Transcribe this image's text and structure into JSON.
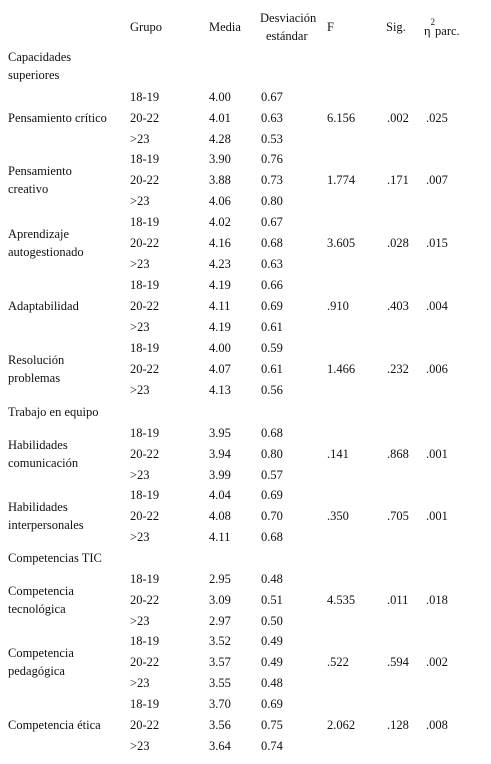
{
  "headers": {
    "grupo": "Grupo",
    "media": "Media",
    "desv_line1": "Desviación",
    "desv_line2": "estándar",
    "f": "F",
    "sig": "Sig.",
    "eta": "η",
    "eta_sup": "2",
    "eta_suffix": "parc."
  },
  "sections": [
    {
      "title_lines": [
        "Capacidades",
        "superiores"
      ],
      "items": [
        {
          "label_lines": [
            "Pensamiento crítico"
          ],
          "rows": [
            [
              "18-19",
              "4.00",
              "0.67"
            ],
            [
              "20-22",
              "4.01",
              "0.63"
            ],
            [
              ">23",
              "4.28",
              "0.53"
            ]
          ],
          "F": "6.156",
          "sig": ".002",
          "eta": ".025"
        },
        {
          "label_lines": [
            "Pensamiento",
            "creativo"
          ],
          "rows": [
            [
              "18-19",
              "3.90",
              "0.76"
            ],
            [
              "20-22",
              "3.88",
              "0.73"
            ],
            [
              ">23",
              "4.06",
              "0.80"
            ]
          ],
          "F": "1.774",
          "sig": ".171",
          "eta": ".007"
        },
        {
          "label_lines": [
            "Aprendizaje",
            "autogestionado"
          ],
          "rows": [
            [
              "18-19",
              "4.02",
              "0.67"
            ],
            [
              "20-22",
              "4.16",
              "0.68"
            ],
            [
              ">23",
              "4.23",
              "0.63"
            ]
          ],
          "F": "3.605",
          "sig": ".028",
          "eta": ".015"
        },
        {
          "label_lines": [
            "Adaptabilidad"
          ],
          "rows": [
            [
              "18-19",
              "4.19",
              "0.66"
            ],
            [
              "20-22",
              "4.11",
              "0.69"
            ],
            [
              ">23",
              "4.19",
              "0.61"
            ]
          ],
          "F": ".910",
          "sig": ".403",
          "eta": ".004"
        },
        {
          "label_lines": [
            "Resolución",
            "problemas"
          ],
          "rows": [
            [
              "18-19",
              "4.00",
              "0.59"
            ],
            [
              "20-22",
              "4.07",
              "0.61"
            ],
            [
              ">23",
              "4.13",
              "0.56"
            ]
          ],
          "F": "1.466",
          "sig": ".232",
          "eta": ".006"
        }
      ]
    },
    {
      "title_lines": [
        "Trabajo en equipo"
      ],
      "items": [
        {
          "label_lines": [
            "Habilidades",
            "comunicación"
          ],
          "rows": [
            [
              "18-19",
              "3.95",
              "0.68"
            ],
            [
              "20-22",
              "3.94",
              "0.80"
            ],
            [
              ">23",
              "3.99",
              "0.57"
            ]
          ],
          "F": ".141",
          "sig": ".868",
          "eta": ".001"
        },
        {
          "label_lines": [
            "Habilidades",
            "interpersonales"
          ],
          "rows": [
            [
              "18-19",
              "4.04",
              "0.69"
            ],
            [
              "20-22",
              "4.08",
              "0.70"
            ],
            [
              ">23",
              "4.11",
              "0.68"
            ]
          ],
          "F": ".350",
          "sig": ".705",
          "eta": ".001"
        }
      ]
    },
    {
      "title_lines": [
        "Competencias TIC"
      ],
      "items": [
        {
          "label_lines": [
            "Competencia",
            "tecnológica"
          ],
          "rows": [
            [
              "18-19",
              "2.95",
              "0.48"
            ],
            [
              "20-22",
              "3.09",
              "0.51"
            ],
            [
              ">23",
              "2.97",
              "0.50"
            ]
          ],
          "F": "4.535",
          "sig": ".011",
          "eta": ".018"
        },
        {
          "label_lines": [
            "Competencia",
            "pedagógica"
          ],
          "rows": [
            [
              "18-19",
              "3.52",
              "0.49"
            ],
            [
              "20-22",
              "3.57",
              "0.49"
            ],
            [
              ">23",
              "3.55",
              "0.48"
            ]
          ],
          "F": ".522",
          "sig": ".594",
          "eta": ".002"
        },
        {
          "label_lines": [
            "Competencia ética"
          ],
          "rows": [
            [
              "18-19",
              "3.70",
              "0.69"
            ],
            [
              "20-22",
              "3.56",
              "0.75"
            ],
            [
              ">23",
              "3.64",
              "0.74"
            ]
          ],
          "F": "2.062",
          "sig": ".128",
          "eta": ".008"
        }
      ]
    }
  ]
}
